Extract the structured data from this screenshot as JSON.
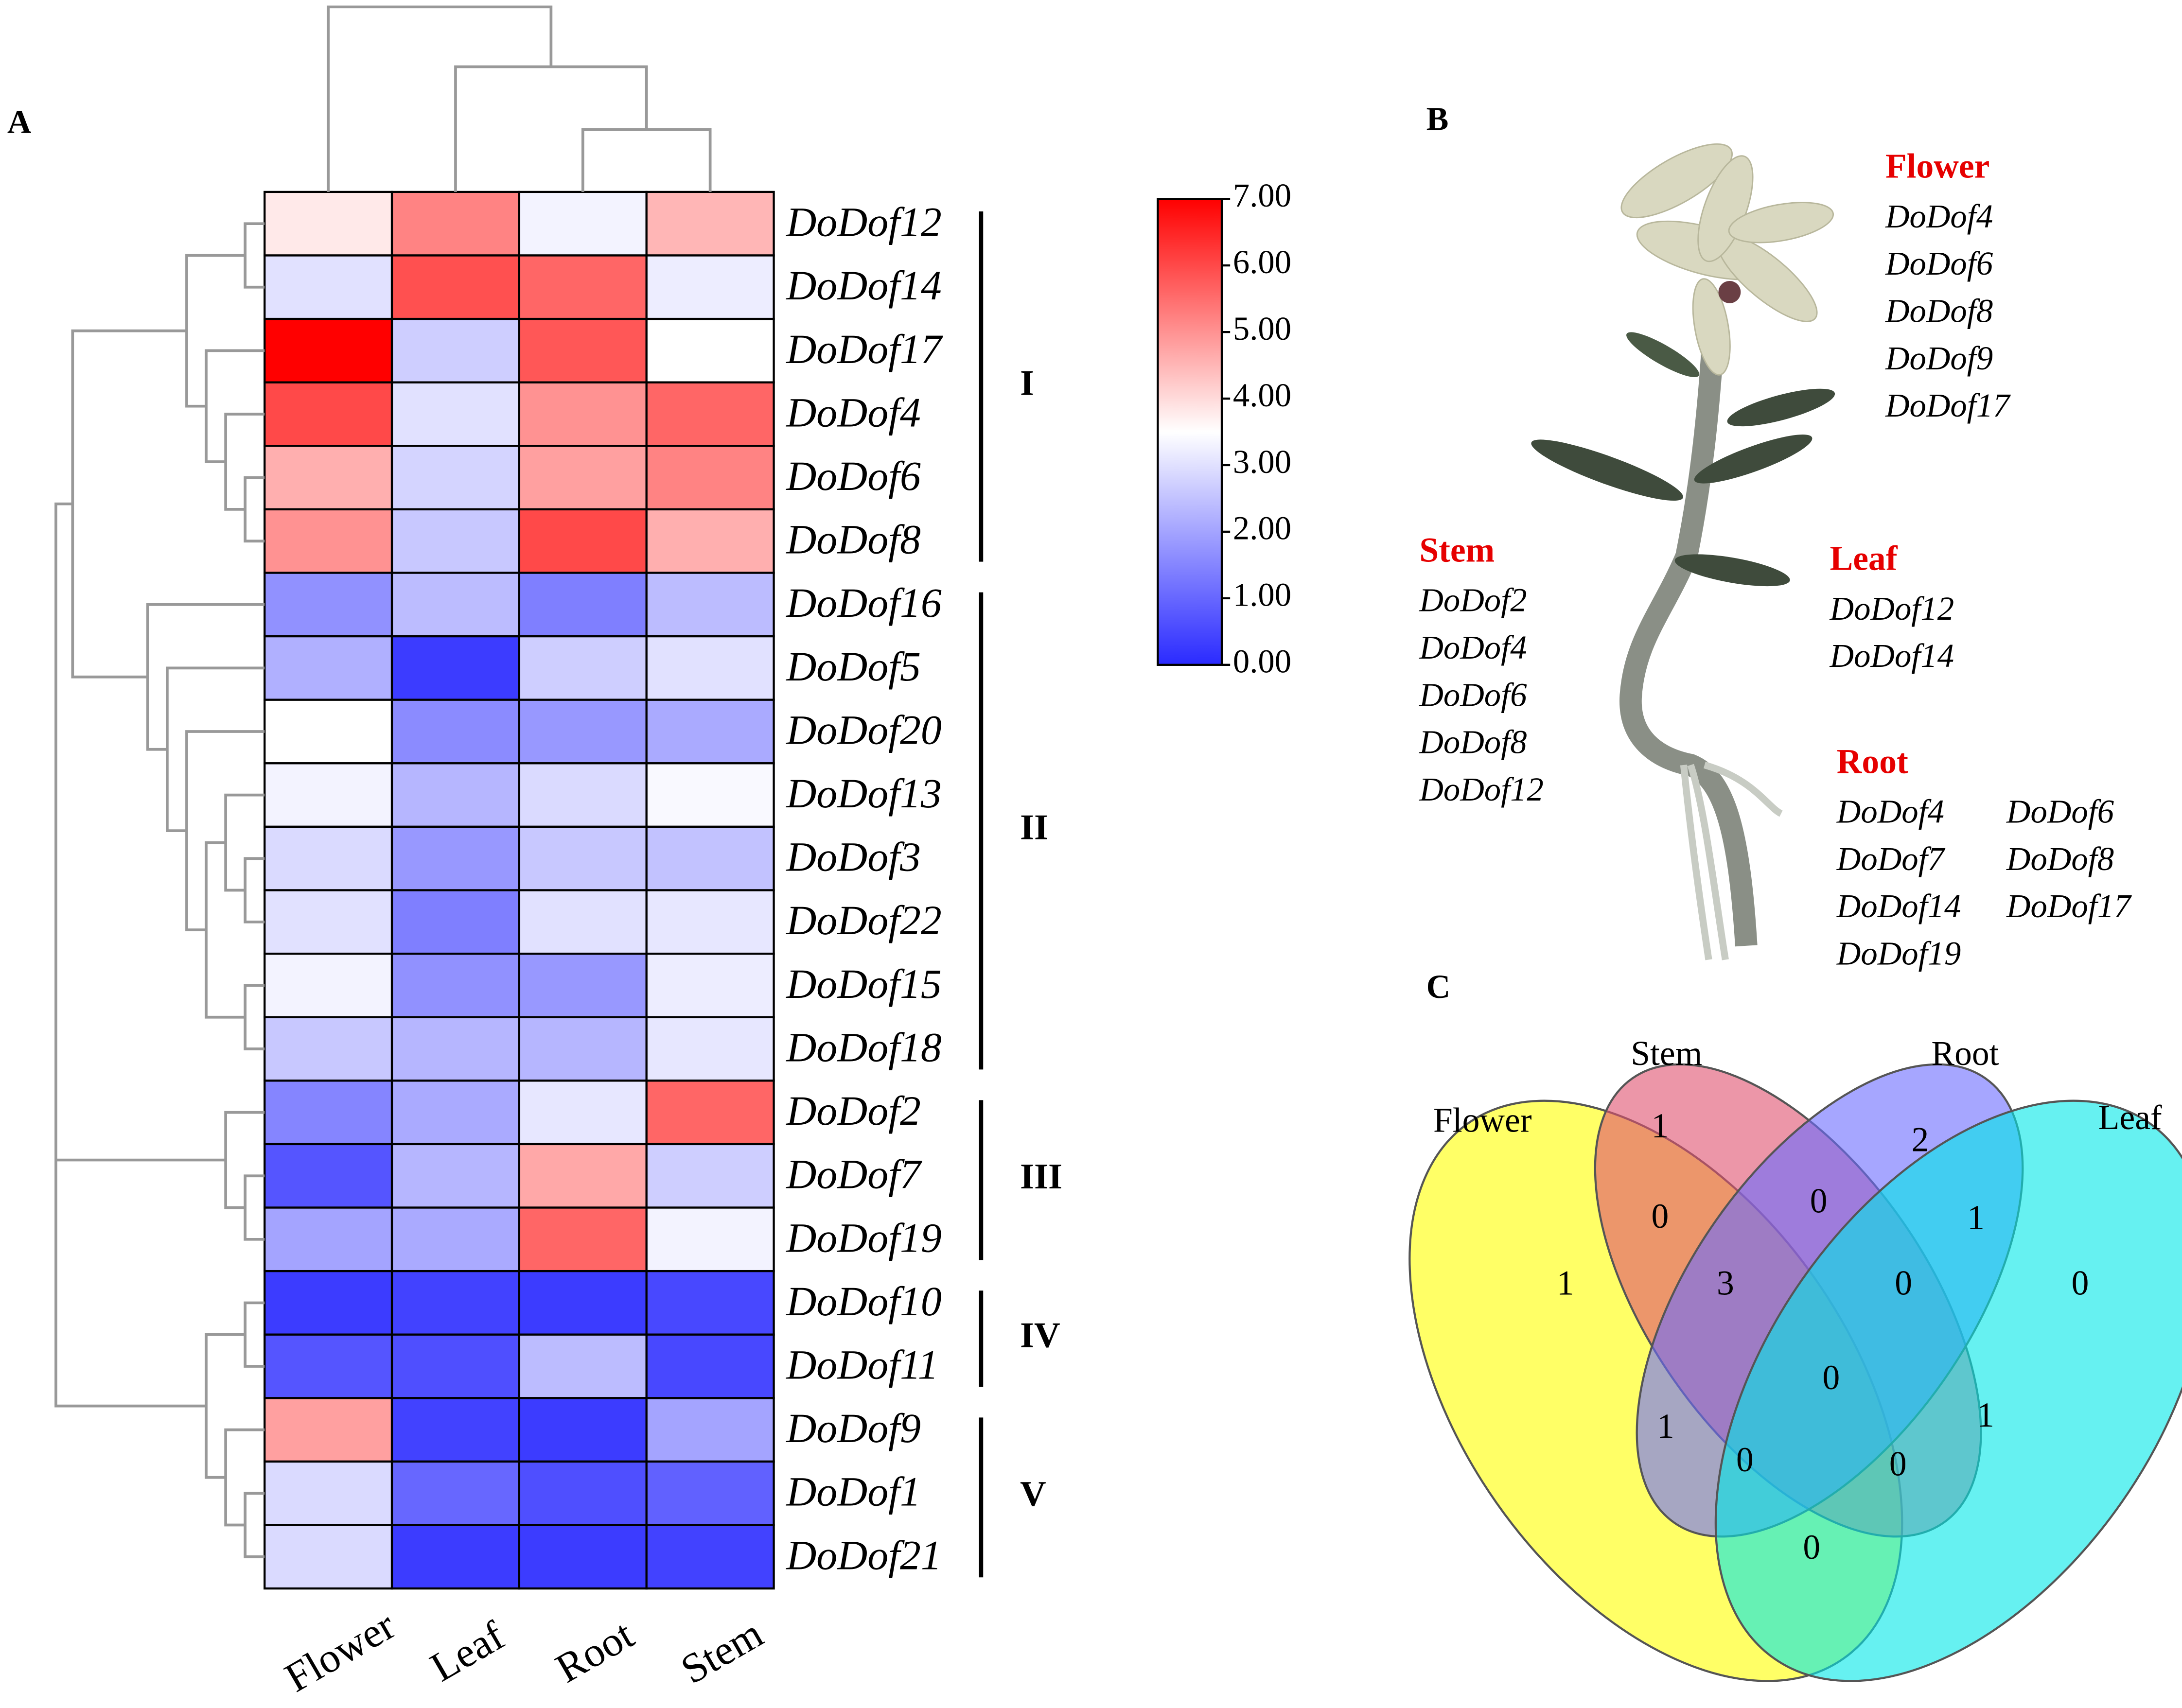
{
  "panel_labels": [
    "A",
    "B",
    "C"
  ],
  "chart_data": [
    {
      "type": "heatmap",
      "columns": [
        "Flower",
        "Leaf",
        "Root",
        "Stem"
      ],
      "rows": [
        "DoDof12",
        "DoDof14",
        "DoDof17",
        "DoDof4",
        "DoDof6",
        "DoDof8",
        "DoDof16",
        "DoDof5",
        "DoDof20",
        "DoDof13",
        "DoDof3",
        "DoDof22",
        "DoDof15",
        "DoDof18",
        "DoDof2",
        "DoDof7",
        "DoDof19",
        "DoDof10",
        "DoDof11",
        "DoDof9",
        "DoDof1",
        "DoDof21"
      ],
      "values": [
        [
          3.8,
          5.2,
          3.3,
          4.5
        ],
        [
          3.0,
          5.9,
          5.6,
          3.2
        ],
        [
          7.0,
          2.7,
          5.8,
          3.5
        ],
        [
          6.0,
          3.0,
          5.0,
          5.6
        ],
        [
          4.6,
          2.8,
          4.8,
          5.2
        ],
        [
          5.0,
          2.6,
          6.0,
          4.6
        ],
        [
          1.7,
          2.4,
          1.4,
          2.4
        ],
        [
          2.2,
          0.3,
          2.7,
          3.0
        ],
        [
          3.5,
          1.6,
          1.8,
          2.1
        ],
        [
          3.3,
          2.3,
          2.9,
          3.4
        ],
        [
          2.9,
          1.8,
          2.6,
          2.5
        ],
        [
          3.0,
          1.4,
          3.0,
          3.1
        ],
        [
          3.3,
          1.7,
          1.8,
          3.2
        ],
        [
          2.6,
          2.3,
          2.3,
          3.1
        ],
        [
          1.5,
          2.1,
          3.1,
          5.6
        ],
        [
          0.7,
          2.3,
          4.7,
          2.7
        ],
        [
          2.0,
          2.1,
          5.6,
          3.3
        ],
        [
          0.3,
          0.4,
          0.3,
          0.5
        ],
        [
          0.7,
          0.6,
          2.4,
          0.5
        ],
        [
          4.8,
          0.4,
          0.3,
          2.0
        ],
        [
          2.9,
          1.0,
          0.6,
          0.9
        ],
        [
          2.9,
          0.3,
          0.3,
          0.4
        ]
      ],
      "colorbar": {
        "lim": [
          0,
          7
        ],
        "colors": [
          "#2a2aff",
          "#ffffff",
          "#ff0000"
        ],
        "ticks": [
          {
            "value": 7,
            "label": "7.00"
          },
          {
            "value": 6,
            "label": "6.00"
          },
          {
            "value": 5,
            "label": "5.00"
          },
          {
            "value": 4,
            "label": "4.00"
          },
          {
            "value": 3,
            "label": "3.00"
          },
          {
            "value": 2,
            "label": "2.00"
          },
          {
            "value": 1,
            "label": "1.00"
          },
          {
            "value": 0,
            "label": "0.00"
          }
        ]
      },
      "groups": [
        {
          "label": "I",
          "span": [
            0,
            5
          ]
        },
        {
          "label": "II",
          "span": [
            6,
            13
          ]
        },
        {
          "label": "III",
          "span": [
            14,
            16
          ]
        },
        {
          "label": "IV",
          "span": [
            17,
            18
          ]
        },
        {
          "label": "V",
          "span": [
            19,
            21
          ]
        }
      ]
    },
    {
      "type": "venn",
      "sets": [
        {
          "name": "Flower",
          "color": "#ffff00"
        },
        {
          "name": "Stem",
          "color": "#e0506e"
        },
        {
          "name": "Root",
          "color": "#6b6bff"
        },
        {
          "name": "Leaf",
          "color": "#00e8e8"
        }
      ],
      "regions": [
        1,
        1,
        2,
        0,
        0,
        0,
        1,
        3,
        0,
        0,
        1,
        0,
        1,
        0,
        0
      ]
    }
  ],
  "panel_b": {
    "tissues": [
      {
        "name": "Flower",
        "genes": [
          "DoDof4",
          "DoDof6",
          "DoDof8",
          "DoDof9",
          "DoDof17"
        ]
      },
      {
        "name": "Stem",
        "genes": [
          "DoDof2",
          "DoDof4",
          "DoDof6",
          "DoDof8",
          "DoDof12"
        ]
      },
      {
        "name": "Leaf",
        "genes": [
          "DoDof12",
          "DoDof14"
        ]
      },
      {
        "name": "Root",
        "genes": [
          "DoDof4",
          "DoDof6",
          "DoDof7",
          "DoDof8",
          "DoDof14",
          "DoDof17",
          "DoDof19"
        ]
      }
    ]
  }
}
